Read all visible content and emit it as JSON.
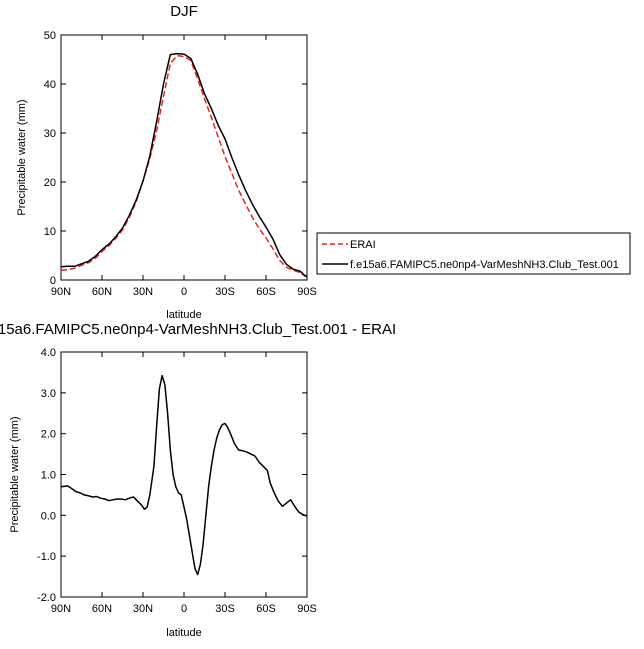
{
  "chart_data": [
    {
      "type": "line",
      "title": "DJF",
      "xlabel": "latitude",
      "ylabel": "Precipitable water (mm)",
      "xlim": [
        90,
        -90
      ],
      "ylim": [
        0,
        50
      ],
      "x_ticks": [
        90,
        60,
        30,
        0,
        -30,
        -60,
        -90
      ],
      "x_tick_labels": [
        "90N",
        "60N",
        "30N",
        "0",
        "30S",
        "60S",
        "90S"
      ],
      "y_ticks": [
        0,
        10,
        20,
        30,
        40,
        50
      ],
      "y_tick_labels": [
        "0",
        "10",
        "20",
        "30",
        "40",
        "50"
      ],
      "legend": {
        "placement": "outside-right"
      },
      "series": [
        {
          "name": "ERAI",
          "color": "#e8231e",
          "dash": "dashed",
          "x": [
            90,
            85,
            80,
            75,
            70,
            65,
            60,
            55,
            50,
            45,
            40,
            35,
            30,
            25,
            20,
            15,
            10,
            5,
            0,
            -5,
            -10,
            -15,
            -20,
            -25,
            -30,
            -35,
            -40,
            -45,
            -50,
            -55,
            -60,
            -65,
            -70,
            -75,
            -80,
            -85,
            -88,
            -90
          ],
          "y": [
            2.0,
            2.1,
            2.4,
            3.0,
            3.5,
            4.4,
            5.8,
            7.0,
            8.5,
            10.2,
            12.8,
            16.0,
            20.2,
            24.8,
            30.5,
            37.5,
            44.2,
            45.8,
            45.6,
            44.8,
            41.0,
            37.0,
            33.2,
            29.2,
            25.2,
            21.8,
            18.3,
            15.5,
            12.8,
            10.5,
            8.6,
            6.4,
            4.0,
            2.6,
            2.0,
            1.5,
            0.9,
            0.6
          ]
        },
        {
          "name": "f.e15a6.FAMIPC5.ne0np4-VarMeshNH3.Club_Test.001",
          "color": "#000000",
          "dash": "solid",
          "x": [
            90,
            85,
            80,
            75,
            70,
            65,
            60,
            55,
            50,
            45,
            40,
            35,
            30,
            25,
            20,
            15,
            10,
            5,
            0,
            -5,
            -10,
            -15,
            -20,
            -25,
            -30,
            -35,
            -40,
            -45,
            -50,
            -55,
            -60,
            -65,
            -70,
            -75,
            -80,
            -85,
            -88,
            -90
          ],
          "y": [
            2.7,
            2.8,
            2.8,
            3.3,
            3.8,
            4.8,
            6.2,
            7.3,
            8.8,
            10.6,
            13.2,
            16.3,
            20.2,
            25.3,
            32.4,
            40.0,
            46.0,
            46.2,
            46.1,
            45.2,
            42.0,
            38.0,
            35.0,
            31.6,
            28.8,
            25.0,
            21.5,
            18.3,
            15.5,
            13.0,
            10.8,
            8.4,
            5.2,
            3.2,
            2.2,
            1.8,
            1.0,
            0.7
          ]
        }
      ]
    },
    {
      "type": "line",
      "title": "15a6.FAMIPC5.ne0np4-VarMeshNH3.Club_Test.001 - ERAI",
      "xlabel": "latitude",
      "ylabel": "Precipitable water (mm)",
      "xlim": [
        90,
        -90
      ],
      "ylim": [
        -2.0,
        4.0
      ],
      "x_ticks": [
        90,
        60,
        30,
        0,
        -30,
        -60,
        -90
      ],
      "x_tick_labels": [
        "90N",
        "60N",
        "30N",
        "0",
        "30S",
        "60S",
        "90S"
      ],
      "y_ticks": [
        -2.0,
        -1.0,
        0.0,
        1.0,
        2.0,
        3.0,
        4.0
      ],
      "y_tick_labels": [
        "-2.0",
        "-1.0",
        "0.0",
        "1.0",
        "2.0",
        "3.0",
        "4.0"
      ],
      "series": [
        {
          "color": "#000000",
          "dash": "solid",
          "x": [
            90,
            85,
            82,
            79,
            76,
            73,
            70,
            67,
            64,
            61,
            58,
            55,
            52,
            49,
            46,
            43,
            40,
            37,
            34,
            31,
            29,
            27,
            25,
            22,
            20,
            18,
            16,
            14,
            12,
            10,
            8,
            6,
            4,
            2,
            0,
            -2,
            -4,
            -6,
            -8,
            -10,
            -12,
            -14,
            -16,
            -18,
            -20,
            -22,
            -24,
            -26,
            -28,
            -30,
            -32,
            -34,
            -37,
            -40,
            -43,
            -46,
            -49,
            -52,
            -55,
            -58,
            -61,
            -63,
            -66,
            -69,
            -72,
            -75,
            -78,
            -81,
            -84,
            -87,
            -90
          ],
          "y": [
            0.7,
            0.72,
            0.65,
            0.58,
            0.55,
            0.5,
            0.48,
            0.45,
            0.46,
            0.42,
            0.4,
            0.36,
            0.38,
            0.4,
            0.4,
            0.38,
            0.42,
            0.45,
            0.35,
            0.25,
            0.15,
            0.2,
            0.5,
            1.2,
            2.2,
            3.1,
            3.42,
            3.2,
            2.5,
            1.6,
            1.0,
            0.7,
            0.55,
            0.5,
            0.2,
            -0.1,
            -0.5,
            -0.9,
            -1.3,
            -1.45,
            -1.2,
            -0.7,
            0.0,
            0.7,
            1.2,
            1.6,
            1.9,
            2.1,
            2.22,
            2.25,
            2.15,
            2.0,
            1.75,
            1.6,
            1.58,
            1.55,
            1.5,
            1.45,
            1.3,
            1.2,
            1.1,
            0.8,
            0.55,
            0.35,
            0.22,
            0.3,
            0.38,
            0.22,
            0.08,
            0.02,
            -0.02
          ]
        }
      ]
    }
  ]
}
